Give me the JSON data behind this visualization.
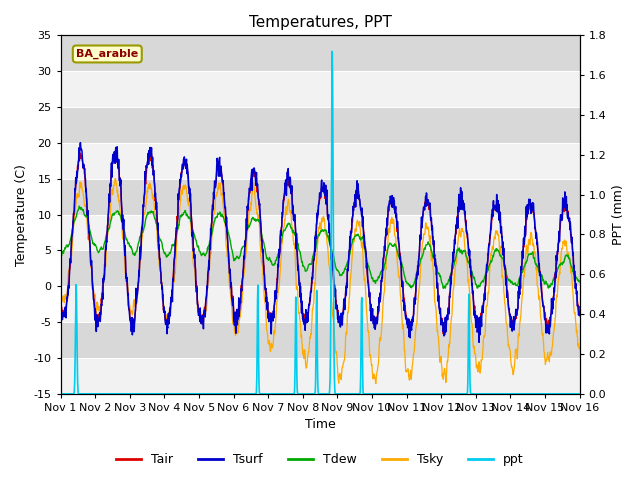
{
  "title": "Temperatures, PPT",
  "xlabel": "Time",
  "ylabel_left": "Temperature (C)",
  "ylabel_right": "PPT (mm)",
  "ylim_left": [
    -15,
    35
  ],
  "ylim_right": [
    0.0,
    1.8
  ],
  "annotation": "BA_arable",
  "annotation_color": "#8B0000",
  "band_color_light": "#f2f2f2",
  "band_color_dark": "#d8d8d8",
  "line_colors": {
    "Tair": "#dd0000",
    "Tsurf": "#0000cc",
    "Tdew": "#00aa00",
    "Tsky": "#ffaa00",
    "ppt": "#00ccee"
  },
  "legend_labels": [
    "Tair",
    "Tsurf",
    "Tdew",
    "Tsky",
    "ppt"
  ],
  "n_points": 1440,
  "days": 15,
  "xtick_labels": [
    "Nov 1",
    "Nov 2",
    "Nov 3",
    "Nov 4",
    "Nov 5",
    "Nov 6",
    "Nov 7",
    "Nov 8",
    "Nov 9",
    "Nov 10",
    "Nov 11",
    "Nov 12",
    "Nov 13",
    "Nov 14",
    "Nov 15",
    "Nov 16"
  ],
  "title_fontsize": 11,
  "label_fontsize": 9,
  "tick_fontsize": 8
}
